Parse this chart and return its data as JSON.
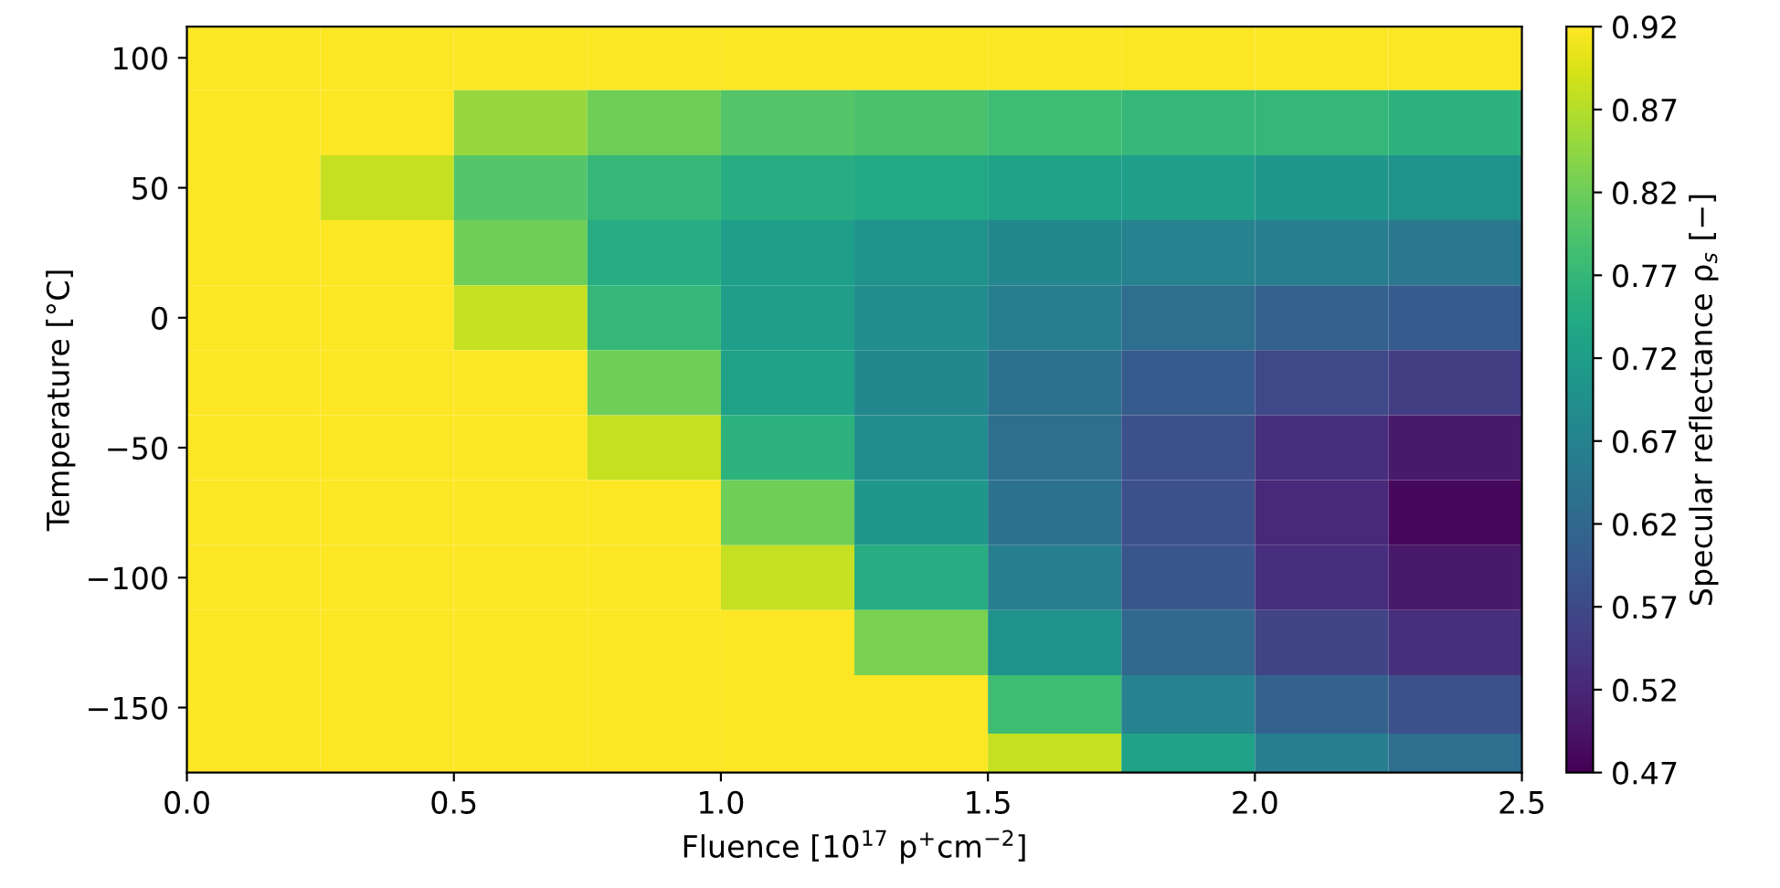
{
  "chart_data": {
    "type": "heatmap",
    "xlabel": "Fluence [10$^{17}$ p$^{+}$cm$^{−2}$]",
    "ylabel": "Temperature [°C]",
    "clabel": "Specular reflectance ρ$_{s}$ [−]",
    "x": [
      0.125,
      0.375,
      0.625,
      0.875,
      1.125,
      1.375,
      1.625,
      1.875,
      2.125,
      2.375
    ],
    "y": [
      100,
      75,
      50,
      25,
      0,
      -25,
      -50,
      -75,
      -100,
      -125,
      -150,
      -170
    ],
    "cells": [
      [
        0.92,
        0.92,
        0.92,
        0.92,
        0.92,
        0.92,
        0.92,
        0.92,
        0.92,
        0.92
      ],
      [
        0.92,
        0.92,
        0.85,
        0.82,
        0.8,
        0.79,
        0.78,
        0.77,
        0.77,
        0.76
      ],
      [
        0.92,
        0.88,
        0.8,
        0.77,
        0.75,
        0.74,
        0.73,
        0.72,
        0.71,
        0.7
      ],
      [
        0.92,
        0.92,
        0.82,
        0.75,
        0.72,
        0.7,
        0.68,
        0.67,
        0.66,
        0.65
      ],
      [
        0.92,
        0.92,
        0.88,
        0.77,
        0.72,
        0.69,
        0.66,
        0.63,
        0.61,
        0.6
      ],
      [
        0.92,
        0.92,
        0.92,
        0.82,
        0.73,
        0.68,
        0.64,
        0.6,
        0.57,
        0.55
      ],
      [
        0.92,
        0.92,
        0.92,
        0.88,
        0.76,
        0.69,
        0.63,
        0.58,
        0.53,
        0.5
      ],
      [
        0.92,
        0.92,
        0.92,
        0.92,
        0.82,
        0.71,
        0.64,
        0.58,
        0.52,
        0.48
      ],
      [
        0.92,
        0.92,
        0.92,
        0.92,
        0.88,
        0.75,
        0.66,
        0.59,
        0.53,
        0.5
      ],
      [
        0.92,
        0.92,
        0.92,
        0.92,
        0.92,
        0.83,
        0.7,
        0.62,
        0.56,
        0.53
      ],
      [
        0.92,
        0.92,
        0.92,
        0.92,
        0.92,
        0.92,
        0.78,
        0.67,
        0.61,
        0.58
      ],
      [
        0.92,
        0.92,
        0.92,
        0.92,
        0.92,
        0.92,
        0.88,
        0.73,
        0.66,
        0.63
      ]
    ],
    "xlim": [
      0.0,
      2.5
    ],
    "ylim": [
      -175,
      112
    ],
    "xticks": [
      {
        "value": 0,
        "label": "0.0"
      },
      0.5,
      {
        "value": 1,
        "label": "1.0"
      },
      1.5,
      {
        "value": 2,
        "label": "2.0"
      },
      2.5
    ],
    "yticks": [
      -150,
      -100,
      -50,
      0,
      50,
      100
    ],
    "clim": [
      0.47,
      0.92
    ],
    "cticks": [
      0.47,
      0.52,
      0.57,
      0.62,
      0.67,
      0.72,
      0.77,
      0.82,
      0.87,
      0.92
    ]
  }
}
